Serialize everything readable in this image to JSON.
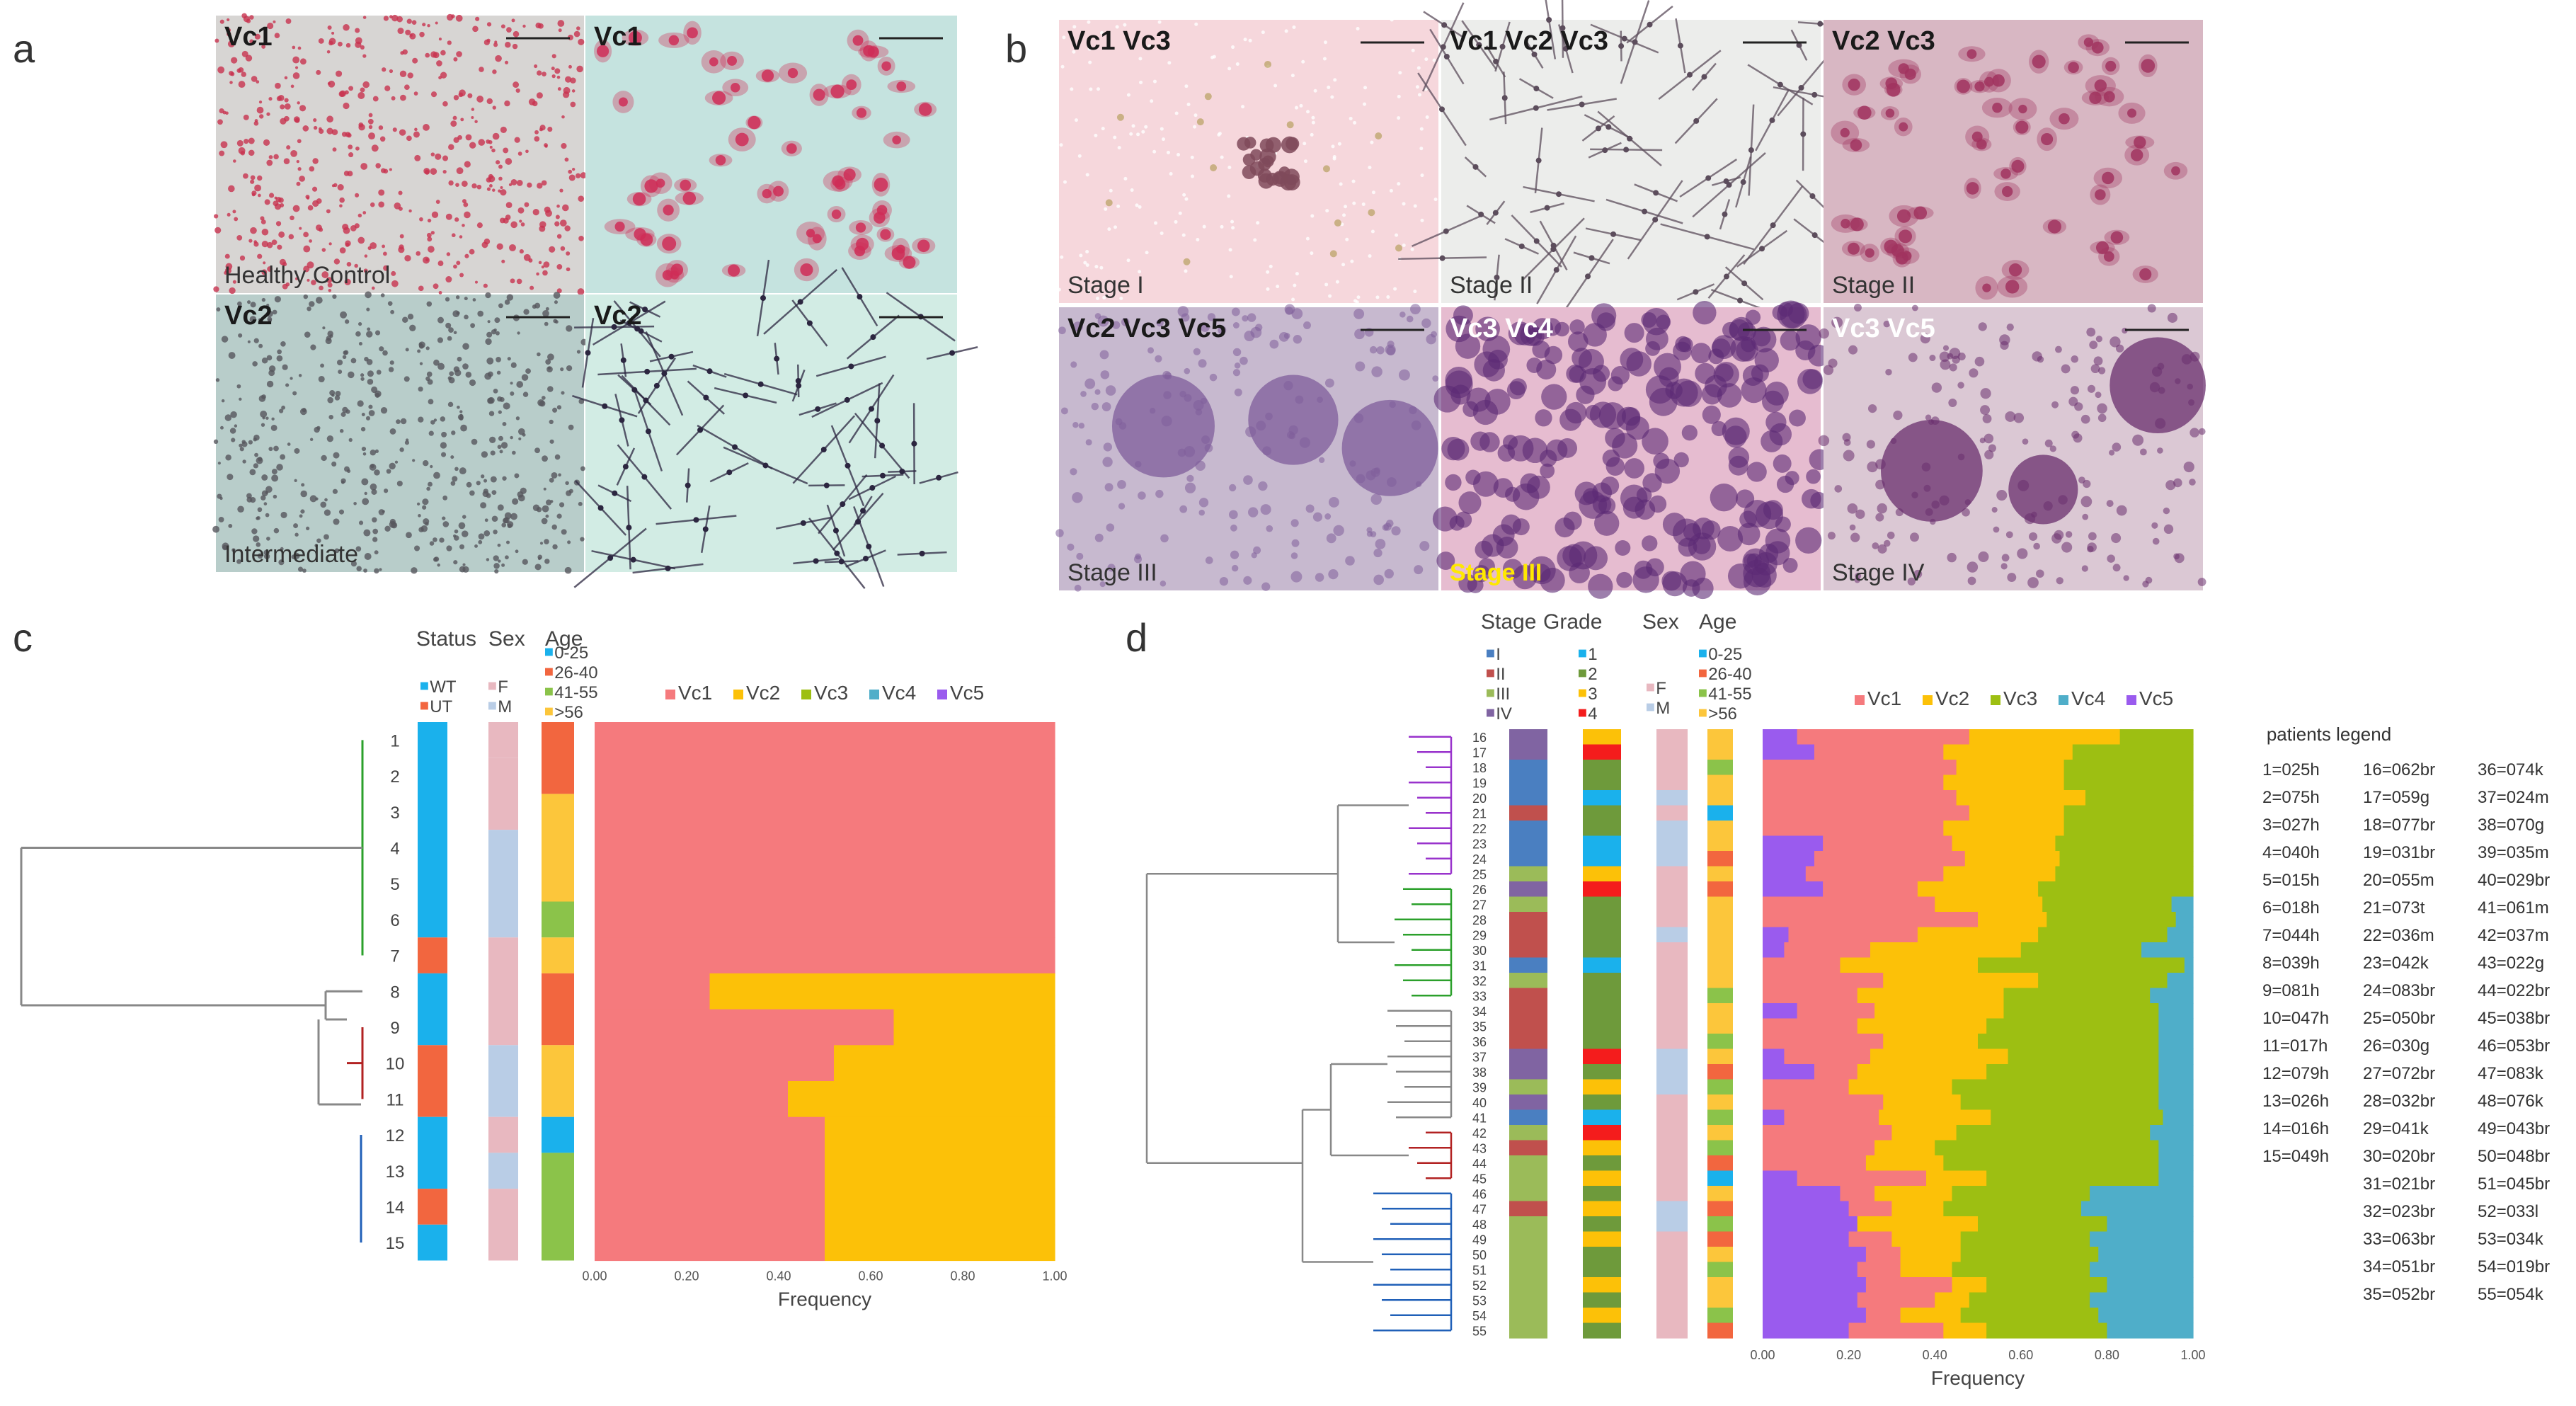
{
  "panel_labels": {
    "a": "a",
    "b": "b",
    "c": "c",
    "d": "d"
  },
  "panel_a": {
    "tiles": [
      {
        "label": "Vc1",
        "caption": "Healthy Control",
        "bg": "#d7d5d3",
        "cell": "#c8324f",
        "kind": "dots"
      },
      {
        "label": "Vc1",
        "caption": "",
        "bg": "#c5e3df",
        "cell": "#cf2d57",
        "kind": "cells"
      },
      {
        "label": "Vc2",
        "caption": "Intermediate",
        "bg": "#b8cdca",
        "cell": "#56565c",
        "kind": "dots"
      },
      {
        "label": "Vc2",
        "caption": "",
        "bg": "#d2ece4",
        "cell": "#2c2640",
        "kind": "spindles"
      }
    ]
  },
  "panel_b": {
    "tiles": [
      {
        "label": "Vc1 Vc3",
        "caption": "Stage I",
        "bg": "#f6d7dc",
        "cell": "#7f4a5a",
        "kind": "sparse"
      },
      {
        "label": "Vc1 Vc2 Vc3",
        "caption": "Stage II",
        "bg": "#ecedeb",
        "cell": "#5c4d5c",
        "kind": "spindles"
      },
      {
        "label": "Vc2 Vc3",
        "caption": "Stage II",
        "bg": "#d8b7c3",
        "cell": "#a1345f",
        "kind": "cells"
      },
      {
        "label": "Vc2 Vc3 Vc5",
        "caption": "Stage III",
        "bg": "#c7b9cf",
        "cell": "#7f5e9b",
        "kind": "clusters"
      },
      {
        "label": "Vc3 Vc4",
        "caption": "Stage III",
        "bg": "#e6bcd0",
        "cell": "#5b2a74",
        "kind": "dense"
      },
      {
        "label": "Vc3 Vc5",
        "caption": "Stage IV",
        "bg": "#dbc8d4",
        "cell": "#6a2f6e",
        "kind": "clusters"
      }
    ]
  },
  "legend_vc": [
    "Vc1",
    "Vc2",
    "Vc3",
    "Vc4",
    "Vc5"
  ],
  "colors": {
    "Vc1": "#f57a7d",
    "Vc2": "#fcc108",
    "Vc3": "#9dbf12",
    "Vc4": "#4faec9",
    "Vc5": "#9a5bee",
    "WT": "#1ab1ec",
    "UT": "#f2663f",
    "F": "#e8b8c0",
    "M": "#b9cde6",
    "age_0_25": "#1ab1ec",
    "age_26_40": "#f2663f",
    "age_41_55": "#8bc34a",
    "age_56": "#fcc63b",
    "stage_I": "#4a7fc1",
    "stage_II": "#c0504d",
    "stage_III": "#9bbb59",
    "stage_IV": "#8064a2",
    "grade_1": "#1ab1ec",
    "grade_2": "#6e9a3b",
    "grade_3": "#fcc108",
    "grade_4": "#f41c1c",
    "clade_green": "#2ba02b",
    "clade_grey": "#888888",
    "clade_red": "#b22222",
    "clade_purple": "#9933cc",
    "clade_blue": "#2060b8"
  },
  "panel_c": {
    "headers": {
      "status": "Status",
      "sex": "Sex",
      "age": "Age"
    },
    "status_legend": [
      "WT",
      "UT"
    ],
    "sex_legend": [
      "F",
      "M"
    ],
    "age_legend": [
      "0-25",
      "26-40",
      "41-55",
      ">56"
    ],
    "samples": [
      "1",
      "2",
      "3",
      "4",
      "5",
      "6",
      "7",
      "8",
      "9",
      "10",
      "11",
      "12",
      "13",
      "14",
      "15"
    ],
    "status_blocks": [
      {
        "from": 1,
        "to": 6,
        "v": "WT"
      },
      {
        "from": 7,
        "to": 7,
        "v": "UT"
      },
      {
        "from": 8,
        "to": 9,
        "v": "WT"
      },
      {
        "from": 10,
        "to": 11,
        "v": "UT"
      },
      {
        "from": 12,
        "to": 13,
        "v": "WT"
      },
      {
        "from": 14,
        "to": 14,
        "v": "UT"
      },
      {
        "from": 15,
        "to": 15,
        "v": "WT"
      }
    ],
    "sex_blocks": [
      {
        "from": 1,
        "to": 1,
        "v": "F"
      },
      {
        "from": 2,
        "to": 3,
        "v": "F"
      },
      {
        "from": 4,
        "to": 6,
        "v": "M"
      },
      {
        "from": 7,
        "to": 9,
        "v": "F"
      },
      {
        "from": 10,
        "to": 11,
        "v": "M"
      },
      {
        "from": 12,
        "to": 12,
        "v": "F"
      },
      {
        "from": 13,
        "to": 13,
        "v": "M"
      },
      {
        "from": 14,
        "to": 15,
        "v": "F"
      }
    ],
    "age_blocks": [
      {
        "from": 1,
        "to": 2,
        "v": "26-40"
      },
      {
        "from": 3,
        "to": 5,
        "v": ">56"
      },
      {
        "from": 6,
        "to": 6,
        "v": "41-55"
      },
      {
        "from": 7,
        "to": 7,
        "v": ">56"
      },
      {
        "from": 8,
        "to": 9,
        "v": "26-40"
      },
      {
        "from": 10,
        "to": 11,
        "v": ">56"
      },
      {
        "from": 12,
        "to": 12,
        "v": "0-25"
      },
      {
        "from": 13,
        "to": 15,
        "v": "41-55"
      }
    ]
  },
  "chart_data": [
    {
      "type": "bar",
      "orientation": "horizontal",
      "stacked": true,
      "panel": "c",
      "xlabel": "Frequency",
      "xlim": [
        0,
        1
      ],
      "xticks": [
        "0.00",
        "0.20",
        "0.40",
        "0.60",
        "0.80",
        "1.00"
      ],
      "categories": [
        "1",
        "2",
        "3",
        "4",
        "5",
        "6",
        "7",
        "8",
        "9",
        "10",
        "11",
        "12",
        "13",
        "14",
        "15"
      ],
      "series": [
        {
          "name": "Vc1",
          "values": [
            1,
            1,
            1,
            1,
            1,
            1,
            1,
            0.25,
            0.65,
            0.52,
            0.42,
            0.5,
            0.5,
            0.5,
            0.5
          ]
        },
        {
          "name": "Vc2",
          "values": [
            0,
            0,
            0,
            0,
            0,
            0,
            0,
            0.75,
            0.35,
            0.48,
            0.58,
            0.5,
            0.5,
            0.5,
            0.5
          ]
        },
        {
          "name": "Vc3",
          "values": [
            0,
            0,
            0,
            0,
            0,
            0,
            0,
            0,
            0,
            0,
            0,
            0,
            0,
            0,
            0
          ]
        },
        {
          "name": "Vc4",
          "values": [
            0,
            0,
            0,
            0,
            0,
            0,
            0,
            0,
            0,
            0,
            0,
            0,
            0,
            0,
            0
          ]
        },
        {
          "name": "Vc5",
          "values": [
            0,
            0,
            0,
            0,
            0,
            0,
            0,
            0,
            0,
            0,
            0,
            0,
            0,
            0,
            0
          ]
        }
      ]
    },
    {
      "type": "bar",
      "orientation": "horizontal",
      "stacked": true,
      "panel": "d",
      "xlabel": "Frequency",
      "xlim": [
        0,
        1
      ],
      "xticks": [
        "0.00",
        "0.20",
        "0.40",
        "0.60",
        "0.80",
        "1.00"
      ],
      "categories": [
        "16",
        "17",
        "18",
        "19",
        "20",
        "21",
        "22",
        "23",
        "24",
        "25",
        "26",
        "27",
        "28",
        "29",
        "30",
        "31",
        "32",
        "33",
        "34",
        "35",
        "36",
        "37",
        "38",
        "39",
        "40",
        "41",
        "42",
        "43",
        "44",
        "45",
        "46",
        "47",
        "48",
        "49",
        "50",
        "51",
        "52",
        "53",
        "54",
        "55"
      ],
      "series": [
        {
          "name": "Vc5",
          "values": [
            0.08,
            0.12,
            0.0,
            0.0,
            0.0,
            0.0,
            0.0,
            0.14,
            0.12,
            0.1,
            0.14,
            0.0,
            0.0,
            0.06,
            0.05,
            0.0,
            0.0,
            0.0,
            0.08,
            0.0,
            0.0,
            0.05,
            0.12,
            0.0,
            0.0,
            0.05,
            0.0,
            0.0,
            0.0,
            0.08,
            0.18,
            0.2,
            0.22,
            0.2,
            0.24,
            0.22,
            0.24,
            0.22,
            0.24,
            0.2
          ]
        },
        {
          "name": "Vc1",
          "values": [
            0.4,
            0.3,
            0.45,
            0.42,
            0.45,
            0.48,
            0.42,
            0.3,
            0.35,
            0.32,
            0.22,
            0.4,
            0.5,
            0.3,
            0.2,
            0.18,
            0.28,
            0.22,
            0.18,
            0.22,
            0.28,
            0.2,
            0.1,
            0.2,
            0.28,
            0.22,
            0.3,
            0.26,
            0.24,
            0.3,
            0.08,
            0.1,
            0.0,
            0.1,
            0.08,
            0.1,
            0.2,
            0.18,
            0.08,
            0.22
          ]
        },
        {
          "name": "Vc2",
          "values": [
            0.35,
            0.3,
            0.25,
            0.28,
            0.3,
            0.22,
            0.28,
            0.24,
            0.22,
            0.26,
            0.28,
            0.25,
            0.16,
            0.28,
            0.35,
            0.32,
            0.36,
            0.34,
            0.3,
            0.3,
            0.22,
            0.32,
            0.3,
            0.24,
            0.18,
            0.26,
            0.15,
            0.14,
            0.18,
            0.14,
            0.18,
            0.12,
            0.28,
            0.16,
            0.14,
            0.12,
            0.08,
            0.08,
            0.14,
            0.1
          ]
        },
        {
          "name": "Vc3",
          "values": [
            0.17,
            0.28,
            0.3,
            0.3,
            0.25,
            0.3,
            0.3,
            0.32,
            0.31,
            0.32,
            0.36,
            0.3,
            0.3,
            0.3,
            0.28,
            0.48,
            0.3,
            0.34,
            0.36,
            0.4,
            0.42,
            0.35,
            0.4,
            0.48,
            0.46,
            0.4,
            0.45,
            0.52,
            0.5,
            0.4,
            0.32,
            0.32,
            0.3,
            0.3,
            0.32,
            0.32,
            0.28,
            0.28,
            0.32,
            0.28
          ]
        },
        {
          "name": "Vc4",
          "values": [
            0.0,
            0.0,
            0.0,
            0.0,
            0.0,
            0.0,
            0.0,
            0.0,
            0.0,
            0.0,
            0.0,
            0.05,
            0.04,
            0.06,
            0.12,
            0.02,
            0.06,
            0.1,
            0.08,
            0.08,
            0.08,
            0.08,
            0.08,
            0.08,
            0.08,
            0.07,
            0.1,
            0.08,
            0.08,
            0.08,
            0.24,
            0.26,
            0.2,
            0.24,
            0.22,
            0.24,
            0.2,
            0.24,
            0.22,
            0.2
          ]
        }
      ]
    }
  ],
  "panel_d": {
    "headers": {
      "stage": "Stage",
      "grade": "Grade",
      "sex": "Sex",
      "age": "Age"
    },
    "stage_legend": [
      "I",
      "II",
      "III",
      "IV"
    ],
    "grade_legend": [
      "1",
      "2",
      "3",
      "4"
    ],
    "sex_legend": [
      "F",
      "M"
    ],
    "age_legend": [
      "0-25",
      "26-40",
      "41-55",
      ">56"
    ],
    "samples": [
      "16",
      "17",
      "18",
      "19",
      "20",
      "21",
      "22",
      "23",
      "24",
      "25",
      "26",
      "27",
      "28",
      "29",
      "30",
      "31",
      "32",
      "33",
      "34",
      "35",
      "36",
      "37",
      "38",
      "39",
      "40",
      "41",
      "42",
      "43",
      "44",
      "45",
      "46",
      "47",
      "48",
      "49",
      "50",
      "51",
      "52",
      "53",
      "54",
      "55"
    ],
    "stage": [
      "IV",
      "IV",
      "I",
      "I",
      "I",
      "II",
      "I",
      "I",
      "I",
      "III",
      "IV",
      "III",
      "II",
      "II",
      "II",
      "I",
      "III",
      "II",
      "II",
      "II",
      "II",
      "IV",
      "IV",
      "III",
      "IV",
      "I",
      "III",
      "II",
      "III",
      "III",
      "III",
      "II",
      "III",
      "III",
      "III",
      "III",
      "III",
      "III",
      "III",
      "III"
    ],
    "grade": [
      "3",
      "4",
      "2",
      "2",
      "1",
      "2",
      "2",
      "1",
      "1",
      "3",
      "4",
      "2",
      "2",
      "2",
      "2",
      "1",
      "2",
      "2",
      "2",
      "2",
      "2",
      "4",
      "2",
      "3",
      "2",
      "1",
      "4",
      "3",
      "2",
      "3",
      "2",
      "3",
      "2",
      "3",
      "2",
      "2",
      "3",
      "2",
      "3",
      "2"
    ],
    "sex": [
      "F",
      "F",
      "F",
      "F",
      "M",
      "F",
      "M",
      "M",
      "M",
      "F",
      "F",
      "F",
      "F",
      "M",
      "F",
      "F",
      "F",
      "F",
      "F",
      "F",
      "F",
      "M",
      "M",
      "M",
      "F",
      "F",
      "F",
      "F",
      "F",
      "F",
      "F",
      "M",
      "M",
      "F",
      "F",
      "F",
      "F",
      "F",
      "F",
      "F"
    ],
    "age": [
      ">56",
      ">56",
      "41-55",
      ">56",
      ">56",
      "0-25",
      ">56",
      ">56",
      "26-40",
      ">56",
      "26-40",
      ">56",
      ">56",
      ">56",
      ">56",
      ">56",
      ">56",
      "41-55",
      ">56",
      ">56",
      "41-55",
      ">56",
      "26-40",
      "41-55",
      ">56",
      "41-55",
      ">56",
      "41-55",
      "26-40",
      "0-25",
      ">56",
      "26-40",
      "41-55",
      "26-40",
      ">56",
      "41-55",
      ">56",
      ">56",
      "41-55",
      "26-40"
    ]
  },
  "patients_legend": {
    "title": "patients legend",
    "columns": [
      [
        "1=025h",
        "2=075h",
        "3=027h",
        "4=040h",
        "5=015h",
        "6=018h",
        "7=044h",
        "8=039h",
        "9=081h",
        "10=047h",
        "11=017h",
        "12=079h",
        "13=026h",
        "14=016h",
        "15=049h"
      ],
      [
        "16=062br",
        "17=059g",
        "18=077br",
        "19=031br",
        "20=055m",
        "21=073t",
        "22=036m",
        "23=042k",
        "24=083br",
        "25=050br",
        "26=030g",
        "27=072br",
        "28=032br",
        "29=041k",
        "30=020br",
        "31=021br",
        "32=023br",
        "33=063br",
        "34=051br",
        "35=052br"
      ],
      [
        "36=074k",
        "37=024m",
        "38=070g",
        "39=035m",
        "40=029br",
        "41=061m",
        "42=037m",
        "43=022g",
        "44=022br",
        "45=038br",
        "46=053br",
        "47=083k",
        "48=076k",
        "49=043br",
        "50=048br",
        "51=045br",
        "52=033l",
        "53=034k",
        "54=019br",
        "55=054k"
      ]
    ]
  }
}
